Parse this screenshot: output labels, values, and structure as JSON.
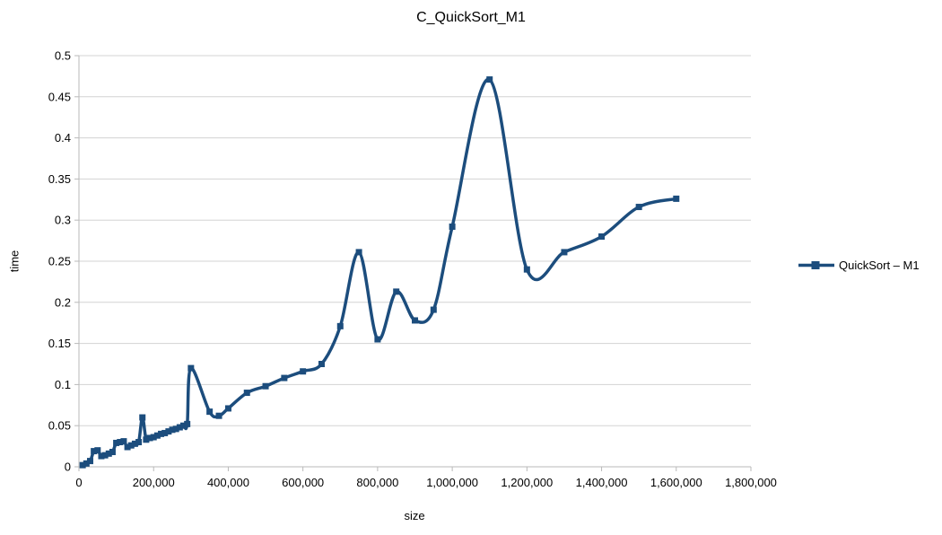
{
  "title": "C_QuickSort_M1",
  "legend": {
    "label": "QuickSort – M1"
  },
  "axes": {
    "x_title": "size",
    "y_title": "time"
  },
  "colors": {
    "series": "#1c4d7d",
    "grid": "#d3d3d3",
    "axis": "#b9b9b9",
    "text": "#000000",
    "background": "#ffffff"
  },
  "chart_data": {
    "type": "line",
    "title": "C_QuickSort_M1",
    "xlabel": "size",
    "ylabel": "time",
    "xlim": [
      0,
      1800000
    ],
    "ylim": [
      0,
      0.5
    ],
    "grid": "horizontal",
    "legend_position": "right",
    "line_smooth": true,
    "marker": "square",
    "x_tick_values": [
      0,
      200000,
      400000,
      600000,
      800000,
      1000000,
      1200000,
      1400000,
      1600000,
      1800000
    ],
    "x_tick_labels": [
      "0",
      "200,000",
      "400,000",
      "600,000",
      "800,000",
      "1,000,000",
      "1,200,000",
      "1,400,000",
      "1,600,000",
      "1,800,000"
    ],
    "y_tick_values": [
      0,
      0.05,
      0.1,
      0.15,
      0.2,
      0.25,
      0.3,
      0.35,
      0.4,
      0.45,
      0.5
    ],
    "y_tick_labels": [
      "0",
      "0.05",
      "0.1",
      "0.15",
      "0.2",
      "0.25",
      "0.3",
      "0.35",
      "0.4",
      "0.45",
      "0.5"
    ],
    "series": [
      {
        "name": "QuickSort – M1",
        "color": "#1c4d7d",
        "points": [
          [
            10000,
            0.002
          ],
          [
            20000,
            0.004
          ],
          [
            30000,
            0.007
          ],
          [
            40000,
            0.019
          ],
          [
            50000,
            0.02
          ],
          [
            60000,
            0.013
          ],
          [
            70000,
            0.014
          ],
          [
            80000,
            0.016
          ],
          [
            90000,
            0.018
          ],
          [
            100000,
            0.029
          ],
          [
            110000,
            0.03
          ],
          [
            120000,
            0.031
          ],
          [
            130000,
            0.024
          ],
          [
            140000,
            0.026
          ],
          [
            150000,
            0.028
          ],
          [
            160000,
            0.03
          ],
          [
            170000,
            0.06
          ],
          [
            180000,
            0.033
          ],
          [
            190000,
            0.035
          ],
          [
            200000,
            0.036
          ],
          [
            210000,
            0.038
          ],
          [
            220000,
            0.04
          ],
          [
            230000,
            0.041
          ],
          [
            240000,
            0.043
          ],
          [
            250000,
            0.045
          ],
          [
            260000,
            0.046
          ],
          [
            270000,
            0.048
          ],
          [
            280000,
            0.05
          ],
          [
            290000,
            0.052
          ],
          [
            300000,
            0.12
          ],
          [
            350000,
            0.067
          ],
          [
            375000,
            0.062
          ],
          [
            400000,
            0.071
          ],
          [
            450000,
            0.09
          ],
          [
            500000,
            0.098
          ],
          [
            550000,
            0.108
          ],
          [
            600000,
            0.116
          ],
          [
            650000,
            0.125
          ],
          [
            700000,
            0.171
          ],
          [
            750000,
            0.261
          ],
          [
            800000,
            0.155
          ],
          [
            850000,
            0.213
          ],
          [
            900000,
            0.178
          ],
          [
            950000,
            0.191
          ],
          [
            1000000,
            0.292
          ],
          [
            1100000,
            0.471
          ],
          [
            1200000,
            0.24
          ],
          [
            1300000,
            0.261
          ],
          [
            1400000,
            0.28
          ],
          [
            1500000,
            0.316
          ],
          [
            1600000,
            0.326
          ]
        ]
      }
    ]
  }
}
